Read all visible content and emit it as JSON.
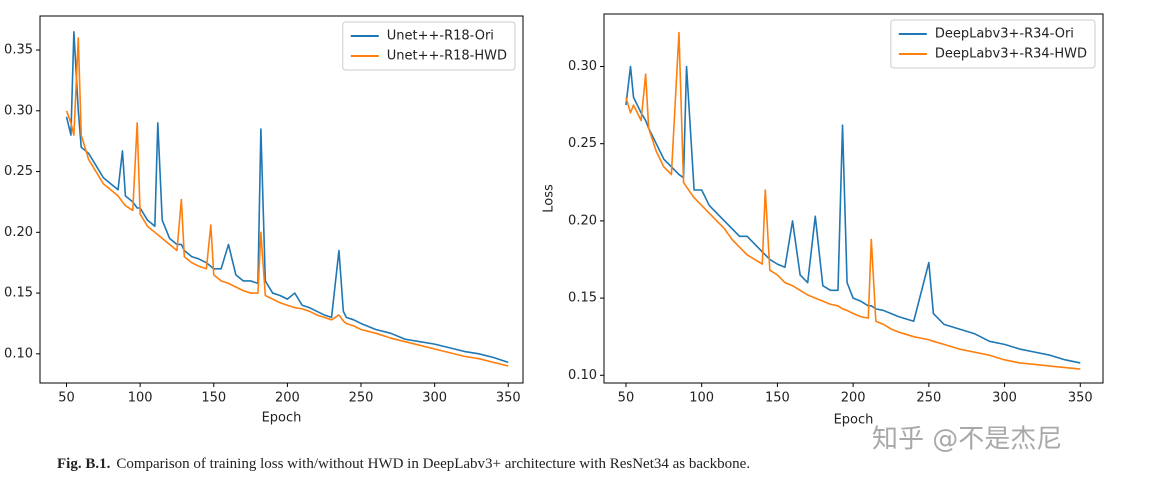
{
  "chart_data": [
    {
      "type": "line",
      "x_label": "Epoch",
      "legend": "upper right",
      "grid": false,
      "x": [
        50,
        53,
        55,
        58,
        60,
        65,
        70,
        75,
        80,
        85,
        88,
        90,
        95,
        98,
        100,
        105,
        110,
        112,
        115,
        120,
        125,
        128,
        130,
        135,
        140,
        145,
        148,
        150,
        155,
        160,
        165,
        170,
        175,
        180,
        182,
        185,
        190,
        195,
        200,
        205,
        210,
        215,
        220,
        225,
        230,
        235,
        238,
        240,
        245,
        250,
        260,
        270,
        280,
        290,
        300,
        310,
        320,
        330,
        340,
        350
      ],
      "series": [
        {
          "name": "Unet++-R18-Ori",
          "color": "#1f77b4",
          "values": [
            0.295,
            0.28,
            0.365,
            0.3,
            0.27,
            0.265,
            0.255,
            0.245,
            0.24,
            0.235,
            0.267,
            0.23,
            0.225,
            0.22,
            0.22,
            0.21,
            0.205,
            0.29,
            0.21,
            0.195,
            0.19,
            0.19,
            0.185,
            0.18,
            0.178,
            0.175,
            0.172,
            0.17,
            0.17,
            0.19,
            0.165,
            0.16,
            0.16,
            0.158,
            0.285,
            0.16,
            0.15,
            0.148,
            0.145,
            0.15,
            0.14,
            0.138,
            0.135,
            0.132,
            0.13,
            0.185,
            0.135,
            0.13,
            0.128,
            0.125,
            0.12,
            0.117,
            0.112,
            0.11,
            0.108,
            0.105,
            0.102,
            0.1,
            0.097,
            0.093
          ]
        },
        {
          "name": "Unet++-R18-HWD",
          "color": "#ff7f0e",
          "values": [
            0.3,
            0.29,
            0.28,
            0.36,
            0.28,
            0.26,
            0.25,
            0.24,
            0.235,
            0.23,
            0.225,
            0.222,
            0.218,
            0.29,
            0.215,
            0.205,
            0.2,
            0.198,
            0.195,
            0.19,
            0.185,
            0.227,
            0.18,
            0.175,
            0.172,
            0.17,
            0.206,
            0.165,
            0.16,
            0.158,
            0.155,
            0.152,
            0.15,
            0.15,
            0.2,
            0.148,
            0.145,
            0.142,
            0.14,
            0.138,
            0.137,
            0.135,
            0.132,
            0.13,
            0.128,
            0.132,
            0.127,
            0.125,
            0.123,
            0.12,
            0.117,
            0.113,
            0.11,
            0.107,
            0.104,
            0.101,
            0.098,
            0.096,
            0.093,
            0.09
          ]
        }
      ],
      "xlim": [
        32,
        360
      ],
      "xticks": [
        50,
        100,
        150,
        200,
        250,
        300,
        350
      ],
      "ylim": [
        0.076,
        0.378
      ],
      "yticks": [
        {
          "value": 0.1,
          "label": "0.10"
        },
        0.15,
        {
          "value": 0.2,
          "label": "0.20"
        },
        0.25,
        {
          "value": 0.3,
          "label": "0.30"
        },
        0.35
      ]
    },
    {
      "type": "line",
      "x_label": "Epoch",
      "y_label": "Loss",
      "legend": "upper right",
      "grid": false,
      "x": [
        50,
        53,
        55,
        60,
        63,
        65,
        70,
        75,
        80,
        85,
        88,
        90,
        95,
        100,
        105,
        110,
        115,
        120,
        125,
        130,
        135,
        140,
        142,
        145,
        150,
        155,
        160,
        165,
        170,
        175,
        180,
        185,
        190,
        193,
        196,
        200,
        205,
        210,
        212,
        215,
        220,
        225,
        230,
        240,
        250,
        253,
        260,
        270,
        280,
        290,
        300,
        310,
        320,
        330,
        340,
        350
      ],
      "series": [
        {
          "name": "DeepLabv3+-R34-Ori",
          "color": "#1f77b4",
          "values": [
            0.275,
            0.3,
            0.28,
            0.27,
            0.265,
            0.26,
            0.25,
            0.24,
            0.235,
            0.23,
            0.228,
            0.3,
            0.22,
            0.22,
            0.21,
            0.205,
            0.2,
            0.195,
            0.19,
            0.19,
            0.185,
            0.18,
            0.178,
            0.175,
            0.172,
            0.17,
            0.2,
            0.165,
            0.16,
            0.203,
            0.158,
            0.155,
            0.155,
            0.262,
            0.16,
            0.15,
            0.148,
            0.145,
            0.145,
            0.143,
            0.142,
            0.14,
            0.138,
            0.135,
            0.173,
            0.14,
            0.133,
            0.13,
            0.127,
            0.122,
            0.12,
            0.117,
            0.115,
            0.113,
            0.11,
            0.108
          ]
        },
        {
          "name": "DeepLabv3+-R34-HWD",
          "color": "#ff7f0e",
          "values": [
            0.28,
            0.27,
            0.275,
            0.265,
            0.295,
            0.26,
            0.245,
            0.235,
            0.23,
            0.322,
            0.225,
            0.222,
            0.215,
            0.21,
            0.205,
            0.2,
            0.195,
            0.188,
            0.183,
            0.178,
            0.175,
            0.172,
            0.22,
            0.168,
            0.165,
            0.16,
            0.158,
            0.155,
            0.152,
            0.15,
            0.148,
            0.146,
            0.145,
            0.143,
            0.142,
            0.14,
            0.138,
            0.137,
            0.188,
            0.135,
            0.133,
            0.13,
            0.128,
            0.125,
            0.123,
            0.122,
            0.12,
            0.117,
            0.115,
            0.113,
            0.11,
            0.108,
            0.107,
            0.106,
            0.105,
            0.104
          ]
        }
      ],
      "xlim": [
        35.5,
        365
      ],
      "xticks": [
        50,
        100,
        150,
        200,
        250,
        300,
        350
      ],
      "ylim": [
        0.095,
        0.334
      ],
      "yticks": [
        {
          "value": 0.1,
          "label": "0.10"
        },
        0.15,
        {
          "value": 0.2,
          "label": "0.20"
        },
        0.25,
        {
          "value": 0.3,
          "label": "0.30"
        }
      ]
    }
  ],
  "caption": {
    "label": "Fig. B.1.",
    "text": "Comparison of training loss with/without HWD in DeepLabv3+ architecture with ResNet34 as backbone."
  },
  "watermark": "知乎 @不是杰尼"
}
